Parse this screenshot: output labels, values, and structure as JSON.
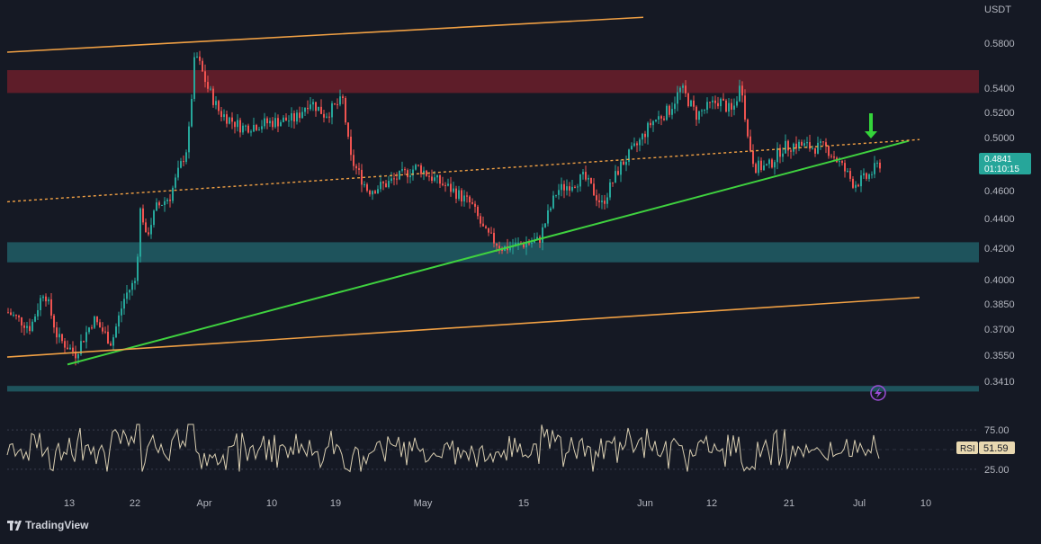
{
  "app": {
    "currency": "USDT",
    "watermark": "TradingView"
  },
  "colors": {
    "background": "#151924",
    "candle_up": "#26a69a",
    "candle_down": "#ef5350",
    "resistance_zone": "#6b1f2a",
    "support_zone": "#1f5a63",
    "channel_line": "#f0a044",
    "trendline": "#3fd23f",
    "arrow": "#34d43a",
    "price_label_bg": "#26a69a",
    "rsi_line": "#d8cdb0",
    "rsi_label_bg": "#e8d8b0"
  },
  "price_axis": {
    "ticks": [
      "0.5800",
      "0.5400",
      "0.5200",
      "0.5000",
      "0.4600",
      "0.4400",
      "0.4200",
      "0.4000",
      "0.3850",
      "0.3700",
      "0.3550",
      "0.3410"
    ]
  },
  "current_price": {
    "value": "0.4841",
    "countdown": "01:10:15"
  },
  "time_axis": {
    "ticks": [
      "13",
      "22",
      "Apr",
      "10",
      "19",
      "May",
      "15",
      "Jun",
      "12",
      "21",
      "Jul",
      "10"
    ]
  },
  "rsi": {
    "label": "RSI",
    "value": "51.59",
    "ticks": [
      "75.00",
      "25.00"
    ]
  },
  "icons": {
    "alert": "lightning-icon",
    "arrow": "arrow-down-icon",
    "logo": "tradingview-logo-icon"
  },
  "chart_data": {
    "type": "candlestick",
    "yscale": "log",
    "ylim": [
      0.338,
      0.6
    ],
    "zones": [
      {
        "name": "resistance",
        "from": 0.536,
        "to": 0.556
      },
      {
        "name": "support",
        "from": 0.411,
        "to": 0.424
      },
      {
        "name": "bottom",
        "from": 0.3355,
        "to": 0.3385
      }
    ],
    "lines": [
      {
        "name": "trendline",
        "start": [
          "Mar 08",
          0.35
        ],
        "end": [
          "Jul 07",
          0.4975
        ]
      },
      {
        "name": "channel-middle",
        "start": [
          "Mar 06",
          0.452
        ],
        "end": [
          "Jul 08",
          0.4985
        ]
      },
      {
        "name": "channel-upper",
        "start": [
          "Mar 06",
          0.572
        ],
        "end": [
          "Jun 01",
          0.603
        ]
      },
      {
        "name": "channel-lower",
        "start": [
          "Mar 06",
          0.354
        ],
        "end": [
          "Jul 08",
          0.389
        ]
      }
    ],
    "path_points": [
      [
        0,
        0.38
      ],
      [
        25,
        0.371
      ],
      [
        40,
        0.394
      ],
      [
        55,
        0.365
      ],
      [
        75,
        0.356
      ],
      [
        95,
        0.376
      ],
      [
        115,
        0.362
      ],
      [
        130,
        0.39
      ],
      [
        142,
        0.4
      ],
      [
        148,
        0.455
      ],
      [
        152,
        0.425
      ],
      [
        165,
        0.448
      ],
      [
        180,
        0.456
      ],
      [
        200,
        0.495
      ],
      [
        208,
        0.572
      ],
      [
        222,
        0.54
      ],
      [
        235,
        0.52
      ],
      [
        260,
        0.508
      ],
      [
        290,
        0.512
      ],
      [
        320,
        0.515
      ],
      [
        335,
        0.53
      ],
      [
        352,
        0.518
      ],
      [
        372,
        0.53
      ],
      [
        380,
        0.485
      ],
      [
        400,
        0.46
      ],
      [
        420,
        0.465
      ],
      [
        455,
        0.478
      ],
      [
        475,
        0.468
      ],
      [
        495,
        0.46
      ],
      [
        515,
        0.45
      ],
      [
        530,
        0.43
      ],
      [
        550,
        0.42
      ],
      [
        590,
        0.425
      ],
      [
        610,
        0.46
      ],
      [
        640,
        0.47
      ],
      [
        660,
        0.45
      ],
      [
        680,
        0.478
      ],
      [
        700,
        0.495
      ],
      [
        715,
        0.512
      ],
      [
        735,
        0.522
      ],
      [
        748,
        0.54
      ],
      [
        765,
        0.518
      ],
      [
        790,
        0.53
      ],
      [
        805,
        0.52
      ],
      [
        815,
        0.545
      ],
      [
        822,
        0.5
      ],
      [
        830,
        0.478
      ],
      [
        845,
        0.478
      ],
      [
        860,
        0.492
      ],
      [
        875,
        0.495
      ],
      [
        890,
        0.493
      ],
      [
        910,
        0.492
      ],
      [
        925,
        0.48
      ],
      [
        940,
        0.465
      ],
      [
        955,
        0.47
      ],
      [
        968,
        0.48
      ],
      [
        978,
        0.484
      ]
    ],
    "rsi_levels": [
      75,
      25
    ],
    "rsi_current": 51.59
  }
}
